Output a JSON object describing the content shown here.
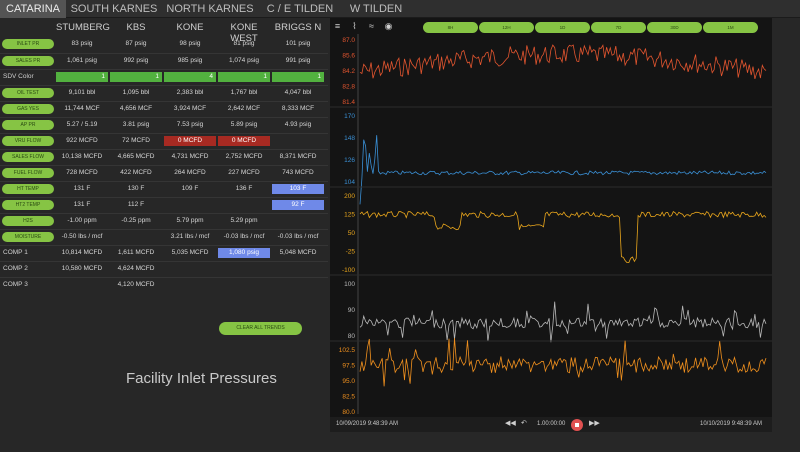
{
  "tabs": [
    {
      "label": "CATARINA",
      "active": true
    },
    {
      "label": "SOUTH KARNES",
      "active": false
    },
    {
      "label": "NORTH KARNES",
      "active": false
    },
    {
      "label": "C / E TILDEN",
      "active": false
    },
    {
      "label": "W TILDEN",
      "active": false
    }
  ],
  "columns": [
    "STUMBERG",
    "KBS",
    "KONE",
    "KONE WEST",
    "BRIGGS N"
  ],
  "rows": [
    {
      "label": "INLET PR",
      "button": true,
      "cells": [
        {
          "v": "83 psig"
        },
        {
          "v": "87 psig"
        },
        {
          "v": "98 psig"
        },
        {
          "v": "81 psig"
        },
        {
          "v": "101 psig"
        }
      ]
    },
    {
      "label": "SALES PR",
      "button": true,
      "cells": [
        {
          "v": "1,061 psig"
        },
        {
          "v": "992 psig"
        },
        {
          "v": "985 psig"
        },
        {
          "v": "1,074 psig"
        },
        {
          "v": "991 psig"
        }
      ]
    },
    {
      "label": "SDV Color",
      "button": false,
      "cells": [
        {
          "v": "1",
          "s": "green"
        },
        {
          "v": "1",
          "s": "green"
        },
        {
          "v": "4",
          "s": "green"
        },
        {
          "v": "1",
          "s": "green"
        },
        {
          "v": "1",
          "s": "green"
        }
      ]
    },
    {
      "label": "OIL TEST",
      "button": true,
      "cells": [
        {
          "v": "9,101 bbl"
        },
        {
          "v": "1,095 bbl"
        },
        {
          "v": "2,383 bbl"
        },
        {
          "v": "1,767 bbl"
        },
        {
          "v": "4,047 bbl"
        }
      ]
    },
    {
      "label": "GAS YES",
      "button": true,
      "cells": [
        {
          "v": "11,744 MCF"
        },
        {
          "v": "4,656 MCF"
        },
        {
          "v": "3,924 MCF"
        },
        {
          "v": "2,642 MCF"
        },
        {
          "v": "8,333 MCF"
        }
      ]
    },
    {
      "label": "AP PR",
      "button": true,
      "cells": [
        {
          "v": "5.27 / 5.19"
        },
        {
          "v": "3.81 psig"
        },
        {
          "v": "7.53 psig"
        },
        {
          "v": "5.89 psig"
        },
        {
          "v": "4.93 psig"
        }
      ]
    },
    {
      "label": "VRU FLOW",
      "button": true,
      "cells": [
        {
          "v": "922 MCFD"
        },
        {
          "v": "72 MCFD"
        },
        {
          "v": "0 MCFD",
          "s": "red"
        },
        {
          "v": "0 MCFD",
          "s": "red"
        },
        {
          "v": ""
        }
      ]
    },
    {
      "label": "SALES FLOW",
      "button": true,
      "cells": [
        {
          "v": "10,138 MCFD"
        },
        {
          "v": "4,665 MCFD"
        },
        {
          "v": "4,731 MCFD"
        },
        {
          "v": "2,752 MCFD"
        },
        {
          "v": "8,371 MCFD"
        }
      ]
    },
    {
      "label": "FUEL FLOW",
      "button": true,
      "cells": [
        {
          "v": "728 MCFD"
        },
        {
          "v": "422 MCFD"
        },
        {
          "v": "264 MCFD"
        },
        {
          "v": "227 MCFD"
        },
        {
          "v": "743 MCFD"
        }
      ]
    },
    {
      "label": "HT TEMP",
      "button": true,
      "cells": [
        {
          "v": "131 F"
        },
        {
          "v": "130 F"
        },
        {
          "v": "109 F"
        },
        {
          "v": "136 F"
        },
        {
          "v": "103 F",
          "s": "blue"
        }
      ]
    },
    {
      "label": "HT2 TEMP",
      "button": true,
      "cells": [
        {
          "v": "131 F"
        },
        {
          "v": "112 F"
        },
        {
          "v": ""
        },
        {
          "v": ""
        },
        {
          "v": "92 F",
          "s": "blue"
        }
      ]
    },
    {
      "label": "H2S",
      "button": true,
      "cells": [
        {
          "v": "-1.00 ppm"
        },
        {
          "v": "-0.25 ppm"
        },
        {
          "v": "5.79 ppm"
        },
        {
          "v": "5.29 ppm"
        },
        {
          "v": ""
        }
      ]
    },
    {
      "label": "MOISTURE",
      "button": true,
      "cells": [
        {
          "v": "-0.50 lbs / mcf"
        },
        {
          "v": ""
        },
        {
          "v": "3.21 lbs / mcf"
        },
        {
          "v": "-0.03 lbs / mcf"
        },
        {
          "v": "-0.03 lbs / mcf"
        }
      ]
    },
    {
      "label": "COMP 1",
      "button": false,
      "cells": [
        {
          "v": "10,814 MCFD"
        },
        {
          "v": "1,611 MCFD"
        },
        {
          "v": "5,035 MCFD"
        },
        {
          "v": "1,080 psig",
          "s": "blue"
        },
        {
          "v": "5,048 MCFD"
        }
      ]
    },
    {
      "label": "COMP 2",
      "button": false,
      "cells": [
        {
          "v": "10,580 MCFD"
        },
        {
          "v": "4,624 MCFD"
        },
        {
          "v": ""
        },
        {
          "v": ""
        },
        {
          "v": ""
        }
      ]
    },
    {
      "label": "COMP 3",
      "button": false,
      "cells": [
        {
          "v": ""
        },
        {
          "v": "4,120 MCFD"
        },
        {
          "v": ""
        },
        {
          "v": ""
        },
        {
          "v": ""
        }
      ]
    }
  ],
  "clear_all_trends": "CLEAR ALL TRENDS",
  "facility_title": "Facility Inlet Pressures",
  "trend": {
    "toolbar_icons": [
      {
        "icon": "hamburger-menu-icon",
        "glyph": "≡"
      },
      {
        "icon": "trend-line-icon",
        "glyph": "⌇"
      },
      {
        "icon": "trend-compare-icon",
        "glyph": "≈"
      },
      {
        "icon": "mouse-icon",
        "glyph": "◉"
      }
    ],
    "range_buttons": [
      "8H",
      "12H",
      "1D",
      "7D",
      "30D",
      "1M"
    ],
    "panes": [
      {
        "color": "#e2552f",
        "ticks": [
          "87.0",
          "85.6",
          "84.2",
          "82.8",
          "81.4"
        ]
      },
      {
        "color": "#3a8fd4",
        "ticks": [
          "170",
          "148",
          "126",
          "104"
        ]
      },
      {
        "color": "#e9a61c",
        "ticks": [
          "200",
          "125",
          "50",
          "-25",
          "-100"
        ]
      },
      {
        "color": "#b8b8b8",
        "ticks": [
          "100",
          "90",
          "80"
        ]
      },
      {
        "color": "#f0901e",
        "ticks": [
          "102.5",
          "97.5",
          "95.0",
          "82.5",
          "80.0"
        ]
      }
    ],
    "start_time": "10/09/2019 9:48:39 AM",
    "end_time": "10/10/2019 9:48:39 AM",
    "playback_time": "1.00:00:00",
    "controls": {
      "rewind": "◀◀",
      "step": "↶",
      "forward": "▶▶"
    }
  },
  "colors": {
    "accent_green": "#86c444",
    "alarm_red": "#a72a22",
    "highlight_blue": "#6f89e8",
    "sdv_green": "#52b13f"
  }
}
